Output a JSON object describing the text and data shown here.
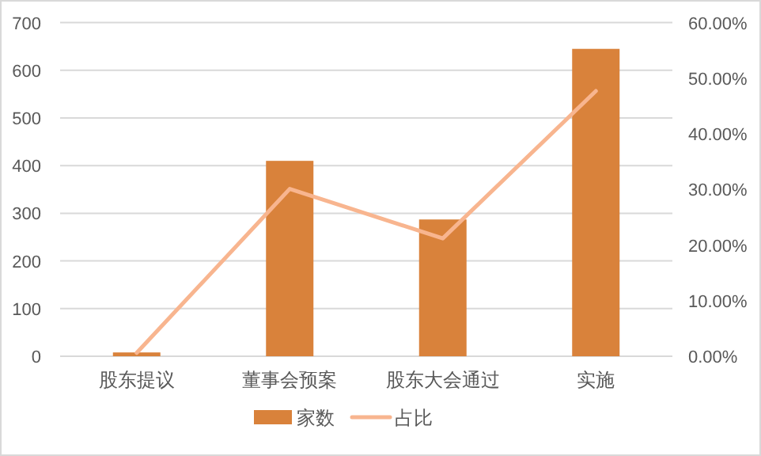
{
  "chart_data": {
    "type": "bar",
    "categories": [
      "股东提议",
      "董事会预案",
      "股东大会通过",
      "实施"
    ],
    "series": [
      {
        "name": "家数",
        "color": "#d9823b",
        "values": [
          8,
          410,
          287,
          645
        ]
      },
      {
        "name": "占比",
        "type": "line",
        "axis": "y2",
        "color": "#f8b58f",
        "values": [
          0.6,
          30.1,
          21.2,
          47.7
        ]
      }
    ],
    "ylim": [
      0,
      700
    ],
    "yticks": [
      0,
      100,
      200,
      300,
      400,
      500,
      600,
      700
    ],
    "y2lim": [
      0,
      60
    ],
    "y2ticks": [
      {
        "value": 0,
        "label": "0.00%"
      },
      {
        "value": 10,
        "label": "10.00%"
      },
      {
        "value": 20,
        "label": "20.00%"
      },
      {
        "value": 30,
        "label": "30.00%"
      },
      {
        "value": 40,
        "label": "40.00%"
      },
      {
        "value": 50,
        "label": "50.00%"
      },
      {
        "value": 60,
        "label": "60.00%"
      }
    ],
    "grid": "y",
    "legend": "bottom",
    "marker": "none",
    "line_style": "solid"
  }
}
